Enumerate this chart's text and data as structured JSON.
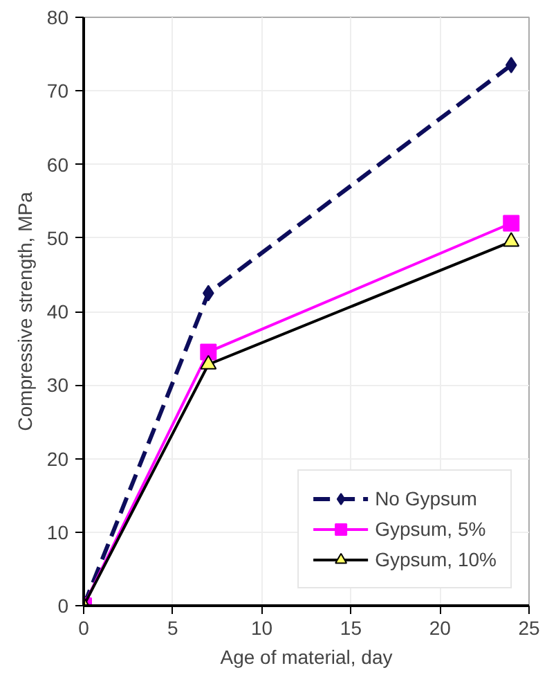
{
  "chart_data": {
    "type": "line",
    "xlabel": "Age of material, day",
    "ylabel": "Compressive strength, MPa",
    "x": [
      0,
      7,
      24
    ],
    "series": [
      {
        "name": "No Gypsum",
        "color": "#0d0d5c",
        "values": [
          0,
          42.5,
          73.5
        ],
        "marker": "diamond",
        "line_style": "dashed"
      },
      {
        "name": "Gypsum, 5%",
        "color": "#ff00ff",
        "values": [
          0,
          34.5,
          52
        ],
        "marker": "square",
        "line_style": "solid"
      },
      {
        "name": "Gypsum, 10%",
        "color": "#000000",
        "values": [
          0,
          32.8,
          49.5
        ],
        "marker": "triangle",
        "line_style": "solid"
      }
    ],
    "xlim": [
      0,
      25
    ],
    "xticks": [
      0,
      5,
      10,
      15,
      20,
      25
    ],
    "ylim": [
      0,
      80
    ],
    "yticks": [
      0,
      10,
      20,
      30,
      40,
      50,
      60,
      70,
      80
    ],
    "grid": true,
    "legend": "bottom right"
  }
}
